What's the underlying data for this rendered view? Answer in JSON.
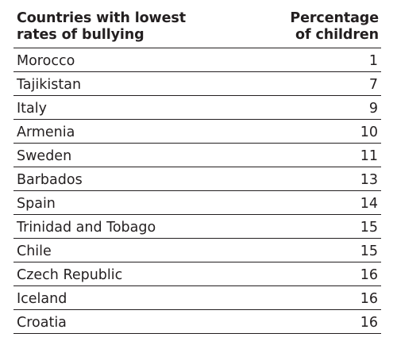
{
  "table": {
    "header": {
      "left_line1": "Countries with lowest",
      "left_line2": "rates of bullying",
      "right_line1": "Percentage",
      "right_line2": "of children"
    },
    "rows": [
      {
        "country": "Morocco",
        "value": "1"
      },
      {
        "country": "Tajikistan",
        "value": "7"
      },
      {
        "country": "Italy",
        "value": "9"
      },
      {
        "country": "Armenia",
        "value": "10"
      },
      {
        "country": "Sweden",
        "value": "11"
      },
      {
        "country": "Barbados",
        "value": "13"
      },
      {
        "country": "Spain",
        "value": "14"
      },
      {
        "country": "Trinidad and Tobago",
        "value": "15"
      },
      {
        "country": "Chile",
        "value": "15"
      },
      {
        "country": "Czech Republic",
        "value": "16"
      },
      {
        "country": "Iceland",
        "value": "16"
      },
      {
        "country": "Croatia",
        "value": "16"
      }
    ]
  }
}
